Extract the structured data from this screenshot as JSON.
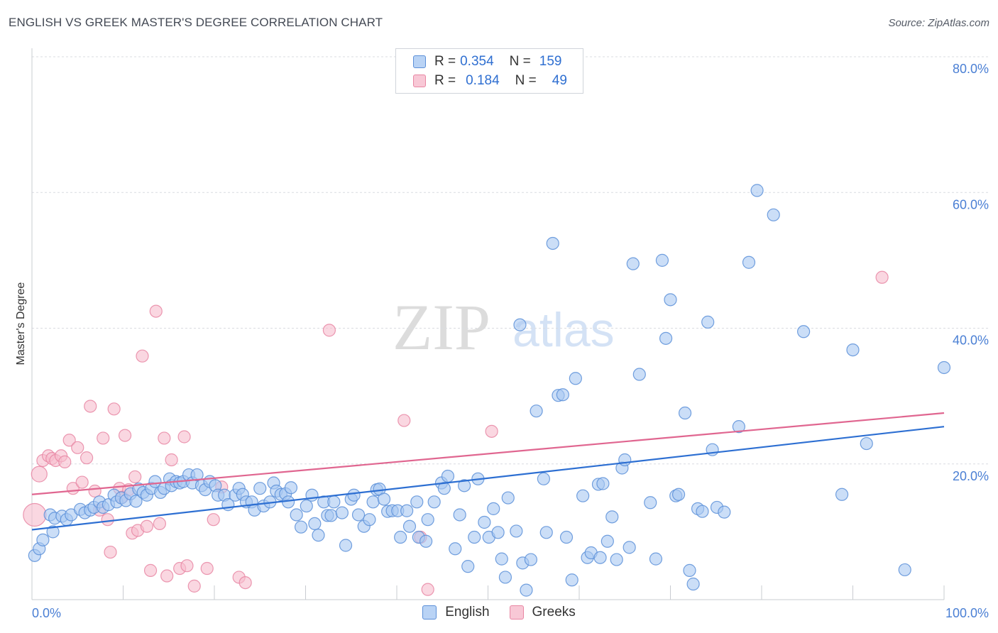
{
  "header": {
    "title": "ENGLISH VS GREEK MASTER'S DEGREE CORRELATION CHART",
    "source": "Source: ZipAtlas.com"
  },
  "watermark": {
    "zip": "ZIP",
    "atlas": "atlas"
  },
  "legend": {
    "rows": [
      {
        "r_label": "R =",
        "r_value": "0.354",
        "n_label": "N =",
        "n_value": "159"
      },
      {
        "r_label": "R =",
        "r_value": "0.184",
        "n_label": "N =",
        "n_value": "49"
      }
    ]
  },
  "colors": {
    "english_fill": "#a9c8f2",
    "english_stroke": "#5b8fd8",
    "english_line": "#2d6fd2",
    "greeks_fill": "#f6bccd",
    "greeks_stroke": "#e886a3",
    "greeks_line": "#e06690",
    "tick_text": "#4a7fd4"
  },
  "chart_data": {
    "type": "scatter",
    "title": "ENGLISH VS GREEK MASTER'S DEGREE CORRELATION CHART",
    "xlabel": "",
    "ylabel": "Master's Degree",
    "xlim": [
      0,
      100
    ],
    "ylim": [
      0,
      80
    ],
    "x_ticks": [
      {
        "value": 0,
        "label": "0.0%"
      },
      {
        "value": 100,
        "label": "100.0%"
      }
    ],
    "y_ticks": [
      {
        "value": 20,
        "label": "20.0%"
      },
      {
        "value": 40,
        "label": "40.0%"
      },
      {
        "value": 60,
        "label": "60.0%"
      },
      {
        "value": 80,
        "label": "80.0%"
      }
    ],
    "grid": "horizontal dashed",
    "legend_position": "top-center and bottom-center",
    "series": [
      {
        "name": "English",
        "r": 0.354,
        "n": 159,
        "trend": {
          "x0": 0,
          "y0": 10.3,
          "x1": 100,
          "y1": 25.5
        },
        "points": [
          [
            0.3,
            6.5
          ],
          [
            0.8,
            7.5
          ],
          [
            1.2,
            8.8
          ],
          [
            2,
            12.5
          ],
          [
            2.3,
            10
          ],
          [
            2.5,
            12
          ],
          [
            3.3,
            12.3
          ],
          [
            3.8,
            11.8
          ],
          [
            4.3,
            12.5
          ],
          [
            5.3,
            13.3
          ],
          [
            5.8,
            12.8
          ],
          [
            6.4,
            13.2
          ],
          [
            6.8,
            13.6
          ],
          [
            7.4,
            14.4
          ],
          [
            7.8,
            13.6
          ],
          [
            8.4,
            14
          ],
          [
            9,
            15.4
          ],
          [
            9.3,
            14.4
          ],
          [
            9.8,
            15
          ],
          [
            10.3,
            14.6
          ],
          [
            10.8,
            15.6
          ],
          [
            11.4,
            14.5
          ],
          [
            11.7,
            16.3
          ],
          [
            12.2,
            15.8
          ],
          [
            12.6,
            15.4
          ],
          [
            13.1,
            16.4
          ],
          [
            13.5,
            17.4
          ],
          [
            14.1,
            15.8
          ],
          [
            14.5,
            16.4
          ],
          [
            15.1,
            17.8
          ],
          [
            15.3,
            16.8
          ],
          [
            15.8,
            17.4
          ],
          [
            16.2,
            17.2
          ],
          [
            16.6,
            17.4
          ],
          [
            17.2,
            18.4
          ],
          [
            17.6,
            17.2
          ],
          [
            18.1,
            18.4
          ],
          [
            18.6,
            16.8
          ],
          [
            19,
            16.2
          ],
          [
            19.5,
            17.4
          ],
          [
            20.1,
            16.8
          ],
          [
            20.4,
            15.4
          ],
          [
            21.1,
            15.4
          ],
          [
            21.5,
            14
          ],
          [
            22.3,
            15.4
          ],
          [
            22.7,
            16.4
          ],
          [
            23.1,
            15.5
          ],
          [
            23.5,
            14.4
          ],
          [
            24.1,
            14.4
          ],
          [
            24.4,
            13.2
          ],
          [
            25,
            16.4
          ],
          [
            25.4,
            13.8
          ],
          [
            26.1,
            14.4
          ],
          [
            26.5,
            17.2
          ],
          [
            26.8,
            16
          ],
          [
            27.3,
            15.5
          ],
          [
            27.8,
            15.6
          ],
          [
            28.1,
            14.4
          ],
          [
            28.4,
            16.5
          ],
          [
            29,
            12.5
          ],
          [
            29.5,
            10.7
          ],
          [
            30.1,
            13.8
          ],
          [
            30.7,
            15.4
          ],
          [
            31,
            11.2
          ],
          [
            31.4,
            9.5
          ],
          [
            32,
            14.4
          ],
          [
            32.4,
            12.4
          ],
          [
            32.8,
            12.4
          ],
          [
            33.1,
            14.4
          ],
          [
            34,
            12.8
          ],
          [
            34.4,
            8
          ],
          [
            35,
            14.8
          ],
          [
            35.3,
            15.4
          ],
          [
            35.8,
            12.5
          ],
          [
            36.4,
            10.8
          ],
          [
            37,
            11.8
          ],
          [
            37.4,
            14.4
          ],
          [
            37.8,
            16.2
          ],
          [
            38.1,
            16.3
          ],
          [
            38.6,
            14.8
          ],
          [
            39,
            13
          ],
          [
            39.5,
            13.1
          ],
          [
            40.1,
            13.1
          ],
          [
            40.4,
            9.2
          ],
          [
            41.1,
            13.1
          ],
          [
            41.4,
            10.8
          ],
          [
            42.2,
            14.4
          ],
          [
            42.4,
            9.2
          ],
          [
            43.2,
            8.6
          ],
          [
            43.4,
            11.8
          ],
          [
            44.1,
            14.4
          ],
          [
            44.9,
            17.2
          ],
          [
            45.2,
            16.4
          ],
          [
            45.6,
            18.2
          ],
          [
            46.4,
            7.5
          ],
          [
            46.9,
            12.5
          ],
          [
            47.4,
            16.8
          ],
          [
            47.8,
            4.9
          ],
          [
            48.5,
            9.2
          ],
          [
            48.9,
            17.8
          ],
          [
            49.6,
            11.4
          ],
          [
            50.1,
            9.2
          ],
          [
            50.6,
            13.4
          ],
          [
            51.1,
            9.9
          ],
          [
            51.5,
            6
          ],
          [
            51.9,
            3.3
          ],
          [
            52.2,
            15
          ],
          [
            53.1,
            10.1
          ],
          [
            53.5,
            40.5
          ],
          [
            53.8,
            5.4
          ],
          [
            54.2,
            1.4
          ],
          [
            54.7,
            5.9
          ],
          [
            55.3,
            27.8
          ],
          [
            56.1,
            17.8
          ],
          [
            56.4,
            9.9
          ],
          [
            57.1,
            52.5
          ],
          [
            57.7,
            30.1
          ],
          [
            58.2,
            30.2
          ],
          [
            58.6,
            9.2
          ],
          [
            59.2,
            2.9
          ],
          [
            59.6,
            32.6
          ],
          [
            60.4,
            15.3
          ],
          [
            60.9,
            6.2
          ],
          [
            61.3,
            6.9
          ],
          [
            62.1,
            17
          ],
          [
            62.3,
            6.2
          ],
          [
            62.6,
            17.1
          ],
          [
            63.1,
            8.6
          ],
          [
            63.6,
            12.2
          ],
          [
            64.1,
            5.9
          ],
          [
            64.7,
            19.4
          ],
          [
            65,
            20.6
          ],
          [
            65.5,
            7.7
          ],
          [
            65.9,
            49.5
          ],
          [
            66.6,
            33.2
          ],
          [
            67.8,
            14.3
          ],
          [
            68.4,
            6
          ],
          [
            69.1,
            50
          ],
          [
            69.5,
            38.5
          ],
          [
            70,
            44.2
          ],
          [
            70.6,
            15.3
          ],
          [
            70.9,
            15.5
          ],
          [
            71.6,
            27.5
          ],
          [
            72.1,
            4.3
          ],
          [
            72.5,
            2.3
          ],
          [
            73,
            13.4
          ],
          [
            73.5,
            13
          ],
          [
            74.1,
            40.9
          ],
          [
            74.6,
            22.1
          ],
          [
            75.1,
            13.6
          ],
          [
            75.9,
            12.9
          ],
          [
            77.5,
            25.5
          ],
          [
            78.6,
            49.7
          ],
          [
            79.5,
            60.3
          ],
          [
            81.3,
            56.7
          ],
          [
            84.6,
            39.5
          ],
          [
            88.8,
            15.5
          ],
          [
            90,
            36.8
          ],
          [
            91.5,
            23
          ],
          [
            95.7,
            4.4
          ],
          [
            100,
            34.2
          ]
        ]
      },
      {
        "name": "Greeks",
        "r": 0.184,
        "n": 49,
        "trend": {
          "x0": 0,
          "y0": 15.5,
          "x1": 100,
          "y1": 27.5
        },
        "points": [
          [
            0.3,
            12.5
          ],
          [
            0.8,
            18.5
          ],
          [
            1.2,
            20.5
          ],
          [
            1.8,
            21.2
          ],
          [
            2.2,
            20.8
          ],
          [
            2.6,
            20.5
          ],
          [
            3.2,
            21.2
          ],
          [
            3.6,
            20.3
          ],
          [
            4.1,
            23.5
          ],
          [
            4.5,
            16.4
          ],
          [
            5,
            22.4
          ],
          [
            5.5,
            17.3
          ],
          [
            6,
            20.9
          ],
          [
            6.4,
            28.5
          ],
          [
            6.9,
            16
          ],
          [
            7.4,
            13.2
          ],
          [
            7.8,
            23.8
          ],
          [
            8.3,
            11.8
          ],
          [
            8.6,
            7
          ],
          [
            9,
            28.1
          ],
          [
            9.6,
            16.4
          ],
          [
            9.9,
            15.1
          ],
          [
            10.2,
            24.2
          ],
          [
            10.6,
            16.2
          ],
          [
            11,
            9.8
          ],
          [
            11.3,
            18.1
          ],
          [
            11.6,
            10.2
          ],
          [
            12.1,
            35.9
          ],
          [
            12.6,
            10.8
          ],
          [
            13,
            4.3
          ],
          [
            13.6,
            42.5
          ],
          [
            14,
            11.2
          ],
          [
            14.5,
            23.8
          ],
          [
            14.8,
            3.5
          ],
          [
            15.3,
            20.6
          ],
          [
            16.2,
            4.6
          ],
          [
            16.7,
            24
          ],
          [
            17,
            5
          ],
          [
            17.8,
            2
          ],
          [
            19.2,
            4.6
          ],
          [
            19.9,
            11.8
          ],
          [
            20.8,
            16.6
          ],
          [
            22.7,
            3.3
          ],
          [
            23.4,
            2.5
          ],
          [
            32.6,
            39.7
          ],
          [
            40.8,
            26.4
          ],
          [
            42.6,
            9.2
          ],
          [
            43.4,
            1.5
          ],
          [
            50.4,
            24.8
          ],
          [
            93.2,
            47.5
          ]
        ]
      }
    ]
  },
  "bottom_legend": {
    "items": [
      "English",
      "Greeks"
    ]
  }
}
